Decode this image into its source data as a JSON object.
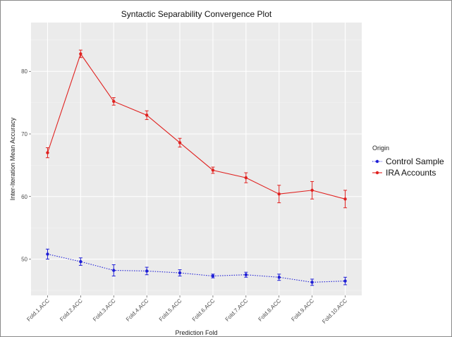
{
  "chart_data": {
    "type": "line",
    "title": "Syntactic Separability Convergence Plot",
    "xlabel": "Prediction Fold",
    "ylabel": "Inter-Iteration Mean Accuracy",
    "categories": [
      "Fold.1.ACC",
      "Fold.2.ACC",
      "Fold.3.ACC",
      "Fold.4.ACC",
      "Fold.5.ACC",
      "Fold.6.ACC",
      "Fold.7.ACC",
      "Fold.8.ACC",
      "Fold.9.ACC",
      "Fold.10.ACC"
    ],
    "ylim": [
      44.2,
      87.8
    ],
    "yticks": [
      50,
      60,
      70,
      80
    ],
    "grid": true,
    "legend": {
      "title": "Origin",
      "placement": "right"
    },
    "series": [
      {
        "name": "Control Sample",
        "color": "#1f1fd6",
        "line_style": "dotted",
        "values": [
          50.8,
          49.6,
          48.2,
          48.1,
          47.8,
          47.3,
          47.5,
          47.1,
          46.3,
          46.5
        ],
        "error": [
          0.8,
          0.6,
          0.9,
          0.6,
          0.5,
          0.3,
          0.4,
          0.5,
          0.5,
          0.6
        ]
      },
      {
        "name": "IRA Accounts",
        "color": "#e0211f",
        "line_style": "solid",
        "values": [
          67.0,
          82.8,
          75.2,
          73.0,
          68.6,
          64.2,
          63.0,
          60.4,
          61.0,
          59.6
        ],
        "error": [
          0.8,
          0.6,
          0.6,
          0.7,
          0.7,
          0.5,
          0.8,
          1.4,
          1.4,
          1.4
        ]
      }
    ]
  }
}
